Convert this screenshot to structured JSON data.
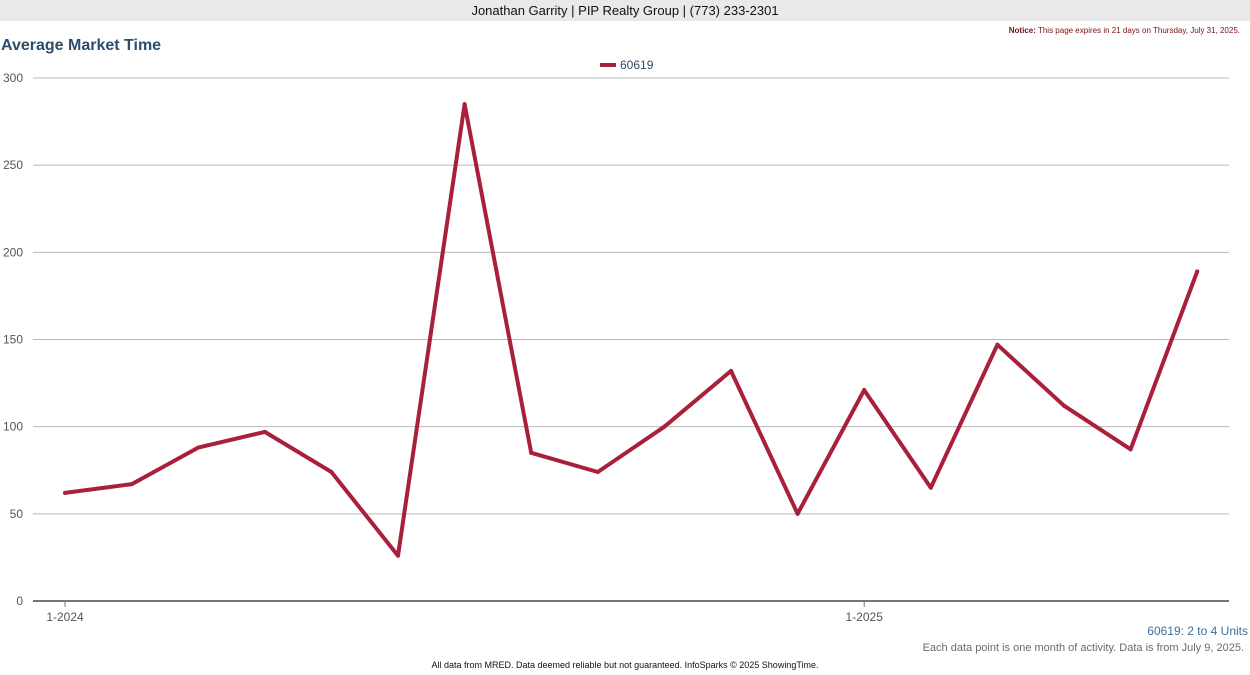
{
  "header": {
    "agent_line": "Jonathan Garrity | PIP Realty Group | (773) 233-2301"
  },
  "notice": {
    "label": "Notice:",
    "text": "This page expires in 21 days on Thursday, July 31, 2025."
  },
  "chart_data": {
    "type": "line",
    "title": "Average Market Time",
    "xlabel": "",
    "ylabel": "",
    "ylim": [
      0,
      300
    ],
    "yticks": [
      "0",
      "50",
      "100",
      "150",
      "200",
      "250",
      "300"
    ],
    "x": [
      "1-2024",
      "2-2024",
      "3-2024",
      "4-2024",
      "5-2024",
      "6-2024",
      "7-2024",
      "8-2024",
      "9-2024",
      "10-2024",
      "11-2024",
      "12-2024",
      "1-2025",
      "2-2025",
      "3-2025",
      "4-2025",
      "5-2025",
      "6-2025"
    ],
    "xtick_labels": [
      {
        "index": 0,
        "label": "1-2024"
      },
      {
        "index": 12,
        "label": "1-2025"
      }
    ],
    "grid": true,
    "legend_position": "top-center",
    "series": [
      {
        "name": "60619",
        "color": "#a8203a",
        "values": [
          62,
          67,
          88,
          97,
          74,
          26,
          285,
          85,
          74,
          100,
          132,
          50,
          121,
          65,
          147,
          112,
          87,
          189
        ]
      }
    ]
  },
  "units_note": "60619: 2 to 4 Units",
  "data_note": "Each data point is one month of activity. Data is from July 9, 2025.",
  "footer": "All data from MRED. Data deemed reliable but not guaranteed. InfoSparks © 2025 ShowingTime."
}
